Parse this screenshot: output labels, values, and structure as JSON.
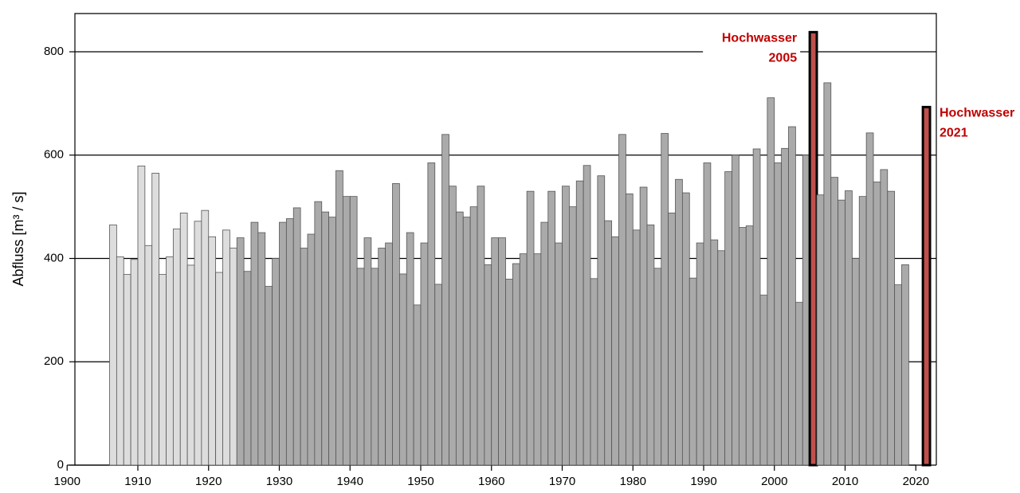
{
  "chart_data": {
    "type": "bar",
    "y_label": "Abfluss [m³ / s]",
    "x": [
      1906,
      1907,
      1908,
      1909,
      1910,
      1911,
      1912,
      1913,
      1914,
      1915,
      1916,
      1917,
      1918,
      1919,
      1920,
      1921,
      1922,
      1923,
      1924,
      1925,
      1926,
      1927,
      1928,
      1929,
      1930,
      1931,
      1932,
      1933,
      1934,
      1935,
      1936,
      1937,
      1938,
      1939,
      1940,
      1941,
      1942,
      1943,
      1944,
      1945,
      1946,
      1947,
      1948,
      1949,
      1950,
      1951,
      1952,
      1953,
      1954,
      1955,
      1956,
      1957,
      1958,
      1959,
      1960,
      1961,
      1962,
      1963,
      1964,
      1965,
      1966,
      1967,
      1968,
      1969,
      1970,
      1971,
      1972,
      1973,
      1974,
      1975,
      1976,
      1977,
      1978,
      1979,
      1980,
      1981,
      1982,
      1983,
      1984,
      1985,
      1986,
      1987,
      1988,
      1989,
      1990,
      1991,
      1992,
      1993,
      1994,
      1995,
      1996,
      1997,
      1998,
      1999,
      2000,
      2001,
      2002,
      2003,
      2004,
      2005,
      2006,
      2007,
      2008,
      2009,
      2010,
      2011,
      2012,
      2013,
      2014,
      2015,
      2016,
      2017,
      2018,
      2021
    ],
    "values": [
      465,
      403,
      369,
      398,
      579,
      425,
      565,
      369,
      403,
      457,
      488,
      387,
      472,
      493,
      442,
      373,
      455,
      420,
      440,
      375,
      470,
      450,
      346,
      400,
      470,
      477,
      498,
      420,
      447,
      510,
      490,
      480,
      570,
      520,
      520,
      381,
      440,
      381,
      420,
      430,
      545,
      370,
      450,
      310,
      430,
      585,
      350,
      640,
      540,
      490,
      480,
      500,
      540,
      388,
      440,
      440,
      360,
      390,
      409,
      530,
      409,
      470,
      530,
      430,
      540,
      500,
      550,
      580,
      361,
      560,
      473,
      442,
      640,
      525,
      455,
      538,
      465,
      381,
      642,
      488,
      553,
      527,
      362,
      430,
      585,
      436,
      415,
      568,
      600,
      460,
      463,
      612,
      329,
      711,
      585,
      613,
      655,
      315,
      600,
      838,
      523,
      740,
      557,
      513,
      531,
      400,
      520,
      643,
      548,
      572,
      530,
      349,
      388,
      693
    ],
    "colors": [
      "#ddd",
      "#ddd",
      "#ddd",
      "#ddd",
      "#ddd",
      "#ddd",
      "#ddd",
      "#ddd",
      "#ddd",
      "#ddd",
      "#ddd",
      "#ddd",
      "#ddd",
      "#ddd",
      "#ddd",
      "#ddd",
      "#ddd",
      "#ddd",
      "#aaa",
      "#aaa",
      "#aaa",
      "#aaa",
      "#aaa",
      "#aaa",
      "#aaa",
      "#aaa",
      "#aaa",
      "#aaa",
      "#aaa",
      "#aaa",
      "#aaa",
      "#aaa",
      "#aaa",
      "#aaa",
      "#aaa",
      "#aaa",
      "#aaa",
      "#aaa",
      "#aaa",
      "#aaa",
      "#aaa",
      "#aaa",
      "#aaa",
      "#aaa",
      "#aaa",
      "#aaa",
      "#aaa",
      "#aaa",
      "#aaa",
      "#aaa",
      "#aaa",
      "#aaa",
      "#aaa",
      "#aaa",
      "#aaa",
      "#aaa",
      "#aaa",
      "#aaa",
      "#aaa",
      "#aaa",
      "#aaa",
      "#aaa",
      "#aaa",
      "#aaa",
      "#aaa",
      "#aaa",
      "#aaa",
      "#aaa",
      "#aaa",
      "#aaa",
      "#aaa",
      "#aaa",
      "#aaa",
      "#aaa",
      "#aaa",
      "#aaa",
      "#aaa",
      "#aaa",
      "#aaa",
      "#aaa",
      "#aaa",
      "#aaa",
      "#aaa",
      "#aaa",
      "#aaa",
      "#aaa",
      "#aaa",
      "#aaa",
      "#aaa",
      "#aaa",
      "#aaa",
      "#aaa",
      "#aaa",
      "#aaa",
      "#aaa",
      "#aaa",
      "#aaa",
      "#aaa",
      "#aaa",
      "#c0504d",
      "#aaa",
      "#aaa",
      "#aaa",
      "#aaa",
      "#aaa",
      "#aaa",
      "#aaa",
      "#aaa",
      "#aaa",
      "#aaa",
      "#aaa",
      "#aaa",
      "#aaa",
      "#c0504d"
    ],
    "highlight_color": "#c0504d",
    "annotation_color": "#c00000",
    "annotations": [
      {
        "x": 2005,
        "lines": [
          "Hochwasser",
          "2005"
        ]
      },
      {
        "x": 2021,
        "lines": [
          "Hochwasser",
          "2021"
        ]
      }
    ],
    "xlim": [
      1901.1,
      2022.9
    ],
    "xticks": [
      1900,
      1910,
      1920,
      1930,
      1940,
      1950,
      1960,
      1970,
      1980,
      1990,
      2000,
      2010,
      2020
    ],
    "ylim": [
      0,
      874
    ],
    "yticks": [
      0,
      200,
      400,
      600,
      800
    ],
    "grid": true
  }
}
